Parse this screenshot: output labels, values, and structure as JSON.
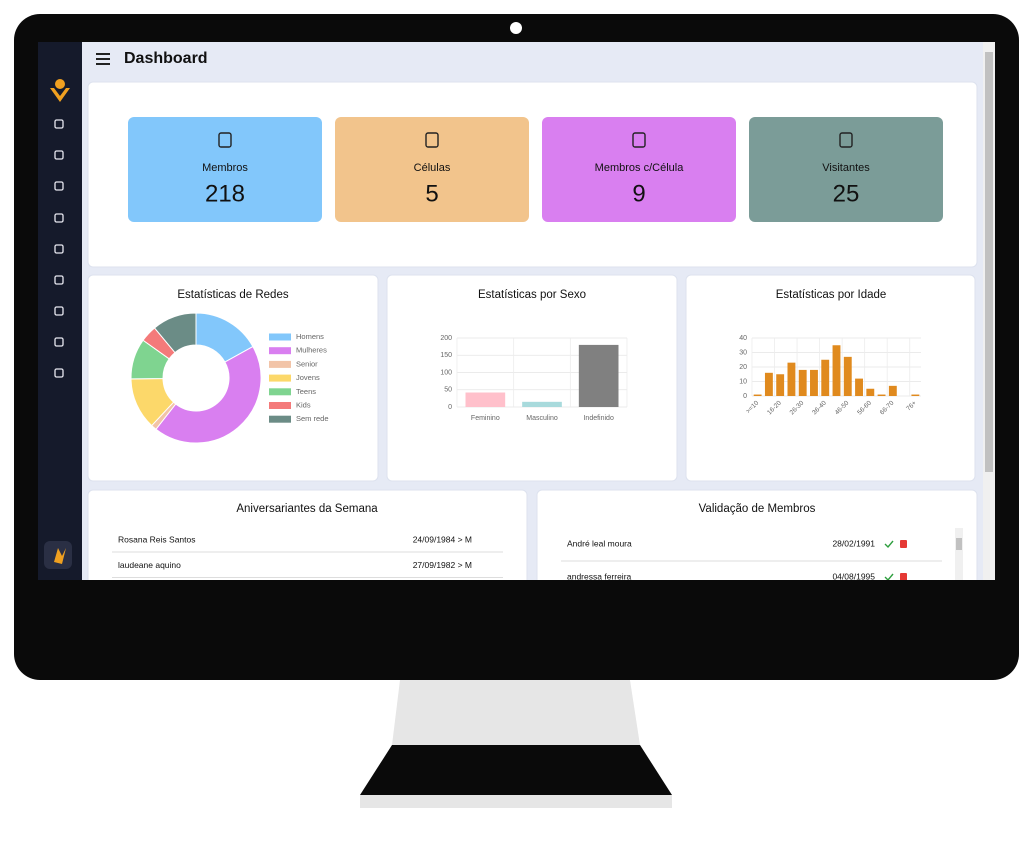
{
  "header": {
    "title": "Dashboard"
  },
  "cards": [
    {
      "label": "Membros",
      "value": 218,
      "color": "#82c7fb"
    },
    {
      "label": "Células",
      "value": 5,
      "color": "#f2c48c"
    },
    {
      "label": "Membros c/Célula",
      "value": 9,
      "color": "#d97ff0"
    },
    {
      "label": "Visitantes",
      "value": 25,
      "color": "#7b9c98"
    }
  ],
  "chart_data": [
    {
      "type": "pie",
      "title": "Estatísticas de Redes",
      "donut": true,
      "legend": "right",
      "categories": [
        "Homens",
        "Mulheres",
        "Senior",
        "Jovens",
        "Teens",
        "Kids",
        "Sem rede"
      ],
      "values": [
        37,
        95,
        3,
        28,
        22,
        9,
        24
      ],
      "colors": [
        "#82c7fb",
        "#d97ff0",
        "#f2c4a8",
        "#fcd86a",
        "#7fd490",
        "#f47a7a",
        "#6b8c86"
      ]
    },
    {
      "type": "bar",
      "title": "Estatísticas por Sexo",
      "categories": [
        "Feminino",
        "Masculino",
        "Indefinido"
      ],
      "values": [
        42,
        15,
        180
      ],
      "colors": [
        "#ffc0cb",
        "#a8dadc",
        "#808080"
      ],
      "ylim": [
        0,
        200
      ],
      "yticks": [
        0,
        50,
        100,
        150,
        200
      ],
      "grid": true
    },
    {
      "type": "bar",
      "title": "Estatísticas por Idade",
      "categories": [
        ">=10",
        null,
        "16-20",
        null,
        "26-30",
        null,
        "36-40",
        null,
        "46-50",
        null,
        "56-60",
        null,
        "66-70",
        null,
        "76+"
      ],
      "values": [
        1,
        16,
        15,
        23,
        18,
        18,
        25,
        35,
        27,
        12,
        5,
        1,
        7,
        0,
        1
      ],
      "color": "#e08a1e",
      "ylim": [
        0,
        40
      ],
      "yticks": [
        0,
        10,
        20,
        30,
        40
      ],
      "grid": true,
      "rotate_labels": true
    }
  ],
  "birthdays": {
    "title": "Aniversariantes da Semana",
    "rows": [
      [
        "Rosana Reis Santos",
        "24/09/1984 > M"
      ],
      [
        "laudeane aquino",
        "27/09/1982 > M"
      ]
    ]
  },
  "validation": {
    "title": "Validação de Membros",
    "rows": [
      [
        "André leal moura",
        "28/02/1991"
      ],
      [
        "andressa ferreira",
        "04/08/1995"
      ]
    ]
  }
}
